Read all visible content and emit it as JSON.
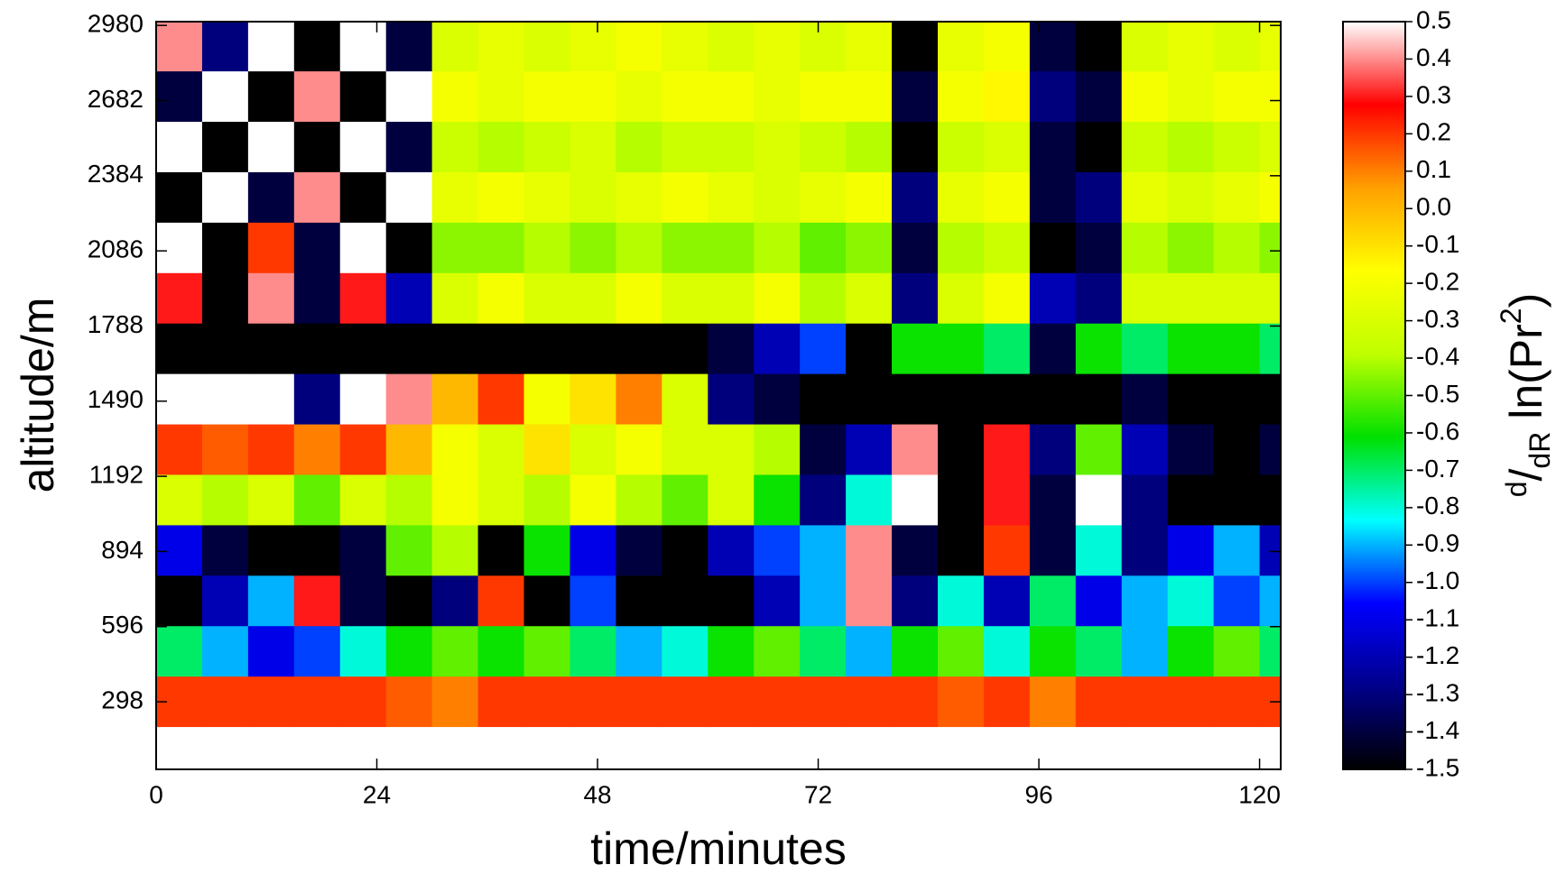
{
  "chart_data": {
    "type": "heatmap",
    "xlabel": "time/minutes",
    "ylabel": "altitude/m",
    "colorbar_label": [
      "d",
      "/",
      "dR",
      " ln(Pr",
      "2",
      ")"
    ],
    "xlim": [
      0,
      122.3
    ],
    "ylim": [
      30,
      2995
    ],
    "xticks": [
      0,
      24,
      48,
      72,
      96,
      120
    ],
    "yticks": [
      298,
      596,
      894,
      1192,
      1490,
      1788,
      2086,
      2384,
      2682,
      2980
    ],
    "clim": [
      -1.5,
      0.5
    ],
    "cticks": [
      0.5,
      0.4,
      0.3,
      0.2,
      0.1,
      {
        "value": 0,
        "label": "0.0"
      },
      -0.1,
      -0.2,
      -0.3,
      -0.4,
      -0.5,
      -0.6,
      -0.7,
      -0.8,
      -0.9,
      {
        "value": -1,
        "label": "-1.0"
      },
      -1.1,
      -1.2,
      -1.3,
      -1.4,
      -1.5
    ],
    "colormap": [
      "#000000",
      "#00008b",
      "#0000ff",
      "#00ffff",
      "#00e000",
      "#c0ff00",
      "#ffff00",
      "#ffa000",
      "#ff0000",
      "#ffffff"
    ],
    "x": [
      2.5,
      7.5,
      12.5,
      17.5,
      22.5,
      27.5,
      32.5,
      37.5,
      42.5,
      47.5,
      52.5,
      57.5,
      62.5,
      67.5,
      72.5,
      77.5,
      82.5,
      87.5,
      92.5,
      97.5,
      102.5,
      107.5,
      112.5,
      117.5,
      122.5
    ],
    "y": [
      100,
      300,
      500,
      700,
      900,
      1100,
      1300,
      1500,
      1700,
      1900,
      2100,
      2300,
      2500,
      2700,
      2900
    ],
    "z": [
      [
        0.5,
        0.5,
        0.5,
        0.5,
        0.5,
        0.5,
        0.5,
        0.5,
        0.5,
        0.5,
        0.5,
        0.5,
        0.5,
        0.5,
        0.5,
        0.5,
        0.5,
        0.5,
        0.5,
        0.5,
        0.5,
        0.5,
        0.5,
        0.5,
        0.5
      ],
      [
        0.2,
        0.2,
        0.2,
        0.2,
        0.2,
        0.15,
        0.1,
        0.2,
        0.2,
        0.2,
        0.2,
        0.2,
        0.2,
        0.2,
        0.2,
        0.2,
        0.2,
        0.15,
        0.2,
        0.1,
        0.2,
        0.2,
        0.2,
        0.2,
        0.2
      ],
      [
        -0.7,
        -0.9,
        -1.1,
        -1.0,
        -0.8,
        -0.6,
        -0.5,
        -0.6,
        -0.5,
        -0.7,
        -0.9,
        -0.8,
        -0.6,
        -0.5,
        -0.7,
        -0.9,
        -0.6,
        -0.5,
        -0.8,
        -0.6,
        -0.7,
        -0.9,
        -0.6,
        -0.5,
        -0.7
      ],
      [
        -1.5,
        -1.2,
        -0.9,
        0.3,
        -1.4,
        -1.5,
        -1.3,
        0.2,
        -1.5,
        -1.0,
        -1.5,
        -1.5,
        -1.5,
        -1.2,
        -0.9,
        0.4,
        -1.3,
        -0.8,
        -1.2,
        -0.7,
        -1.1,
        -0.9,
        -0.8,
        -1.0,
        -0.9
      ],
      [
        -1.1,
        -1.4,
        -1.5,
        -1.5,
        -1.4,
        -0.5,
        -0.4,
        -1.5,
        -0.6,
        -1.1,
        -1.4,
        -1.5,
        -1.2,
        -1.0,
        -0.9,
        0.4,
        -1.4,
        -1.5,
        0.2,
        -1.4,
        -0.8,
        -1.3,
        -1.1,
        -0.9,
        -1.2
      ],
      [
        -0.3,
        -0.4,
        -0.3,
        -0.5,
        -0.3,
        -0.4,
        -0.2,
        -0.3,
        -0.4,
        -0.2,
        -0.4,
        -0.5,
        -0.3,
        -0.6,
        -1.3,
        -0.8,
        0.5,
        -1.5,
        0.3,
        -1.4,
        0.5,
        -1.3,
        -1.5,
        -1.5,
        -1.5
      ],
      [
        0.2,
        0.15,
        0.2,
        0.1,
        0.2,
        0.0,
        -0.2,
        -0.3,
        -0.1,
        -0.3,
        -0.2,
        -0.3,
        -0.3,
        -0.4,
        -1.4,
        -1.2,
        0.4,
        -1.5,
        0.3,
        -1.3,
        -0.5,
        -1.2,
        -1.4,
        -1.5,
        -1.4
      ],
      [
        0.5,
        0.5,
        0.5,
        -1.3,
        0.5,
        0.4,
        0.0,
        0.2,
        -0.2,
        -0.1,
        0.1,
        -0.3,
        -1.3,
        -1.4,
        -1.5,
        -1.5,
        -1.5,
        -1.5,
        -1.5,
        -1.5,
        -1.5,
        -1.4,
        -1.5,
        -1.5,
        -1.5
      ],
      [
        -1.5,
        -1.5,
        -1.5,
        -1.5,
        -1.5,
        -1.5,
        -1.5,
        -1.5,
        -1.5,
        -1.5,
        -1.5,
        -1.5,
        -1.4,
        -1.2,
        -1.0,
        -1.5,
        -0.6,
        -0.6,
        -0.7,
        -1.4,
        -0.6,
        -0.7,
        -0.6,
        -0.6,
        -0.7
      ],
      [
        0.3,
        -1.5,
        0.4,
        -1.4,
        0.3,
        -1.2,
        -0.3,
        -0.2,
        -0.3,
        -0.3,
        -0.2,
        -0.3,
        -0.3,
        -0.2,
        -0.4,
        -0.3,
        -1.3,
        -0.3,
        -0.2,
        -1.2,
        -1.3,
        -0.3,
        -0.3,
        -0.3,
        -0.3
      ],
      [
        0.5,
        -1.5,
        0.2,
        -1.4,
        0.5,
        -1.5,
        -0.45,
        -0.45,
        -0.4,
        -0.45,
        -0.4,
        -0.45,
        -0.45,
        -0.4,
        -0.5,
        -0.45,
        -1.4,
        -0.4,
        -0.35,
        -1.5,
        -1.4,
        -0.4,
        -0.45,
        -0.4,
        -0.45
      ],
      [
        -1.5,
        0.5,
        -1.4,
        0.4,
        -1.5,
        0.5,
        -0.25,
        -0.2,
        -0.25,
        -0.3,
        -0.25,
        -0.2,
        -0.25,
        -0.3,
        -0.25,
        -0.2,
        -1.3,
        -0.25,
        -0.2,
        -1.4,
        -1.3,
        -0.25,
        -0.3,
        -0.25,
        -0.2
      ],
      [
        0.5,
        -1.5,
        0.5,
        -1.5,
        0.5,
        -1.4,
        -0.35,
        -0.4,
        -0.35,
        -0.3,
        -0.4,
        -0.35,
        -0.35,
        -0.3,
        -0.35,
        -0.4,
        -1.5,
        -0.35,
        -0.3,
        -1.4,
        -1.5,
        -0.35,
        -0.4,
        -0.35,
        -0.3
      ],
      [
        -1.4,
        0.5,
        -1.5,
        0.4,
        -1.5,
        0.5,
        -0.2,
        -0.25,
        -0.2,
        -0.2,
        -0.25,
        -0.2,
        -0.2,
        -0.25,
        -0.2,
        -0.2,
        -1.4,
        -0.2,
        -0.15,
        -1.3,
        -1.4,
        -0.2,
        -0.25,
        -0.2,
        -0.2
      ],
      [
        0.4,
        -1.3,
        0.5,
        -1.5,
        0.5,
        -1.4,
        -0.3,
        -0.25,
        -0.3,
        -0.25,
        -0.2,
        -0.25,
        -0.3,
        -0.25,
        -0.3,
        -0.25,
        -1.5,
        -0.25,
        -0.2,
        -1.4,
        -1.5,
        -0.3,
        -0.25,
        -0.3,
        -0.25
      ]
    ]
  }
}
